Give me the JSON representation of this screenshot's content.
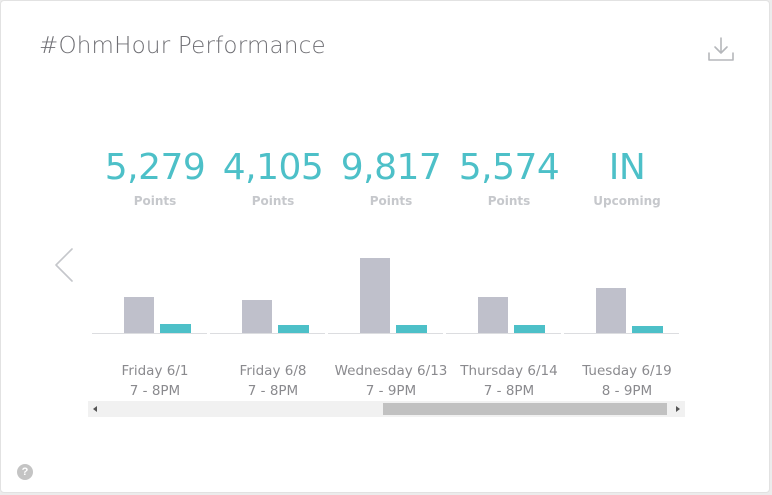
{
  "header": {
    "title": "#OhmHour Performance",
    "download_icon": "download-icon"
  },
  "colors": {
    "accent": "#4dc0c8",
    "bar_gray": "#bfc0cb",
    "label_gray": "#c6c8cc",
    "text_gray": "#8a8a8e"
  },
  "events": [
    {
      "value": "5,279",
      "label": "Points",
      "day": "Friday 6/1",
      "time": "7 - 8PM"
    },
    {
      "value": "4,105",
      "label": "Points",
      "day": "Friday 6/8",
      "time": "7 - 8PM"
    },
    {
      "value": "9,817",
      "label": "Points",
      "day": "Wednesday 6/13",
      "time": "7 - 9PM"
    },
    {
      "value": "5,574",
      "label": "Points",
      "day": "Thursday 6/14",
      "time": "7 - 8PM"
    },
    {
      "value": "IN",
      "label": "Upcoming",
      "day": "Tuesday 6/19",
      "time": "8 - 9PM"
    }
  ],
  "chart_data": {
    "type": "bar",
    "categories": [
      "Friday 6/1",
      "Friday 6/8",
      "Wednesday 6/13",
      "Thursday 6/14",
      "Tuesday 6/19"
    ],
    "series": [
      {
        "values": [
          36,
          33,
          75,
          36,
          45
        ],
        "color": "#bfc0cb"
      },
      {
        "values": [
          9,
          8,
          8,
          8,
          7
        ],
        "color": "#4dc0c8"
      }
    ],
    "ylim": [
      0,
      80
    ],
    "grid": false,
    "legend": "none"
  },
  "nav": {
    "prev_icon": "chevron-left-icon"
  },
  "scrollbar": {
    "left_icon": "scroll-left-icon",
    "right_icon": "scroll-right-icon",
    "position": 0.5
  },
  "help": {
    "label": "?"
  }
}
